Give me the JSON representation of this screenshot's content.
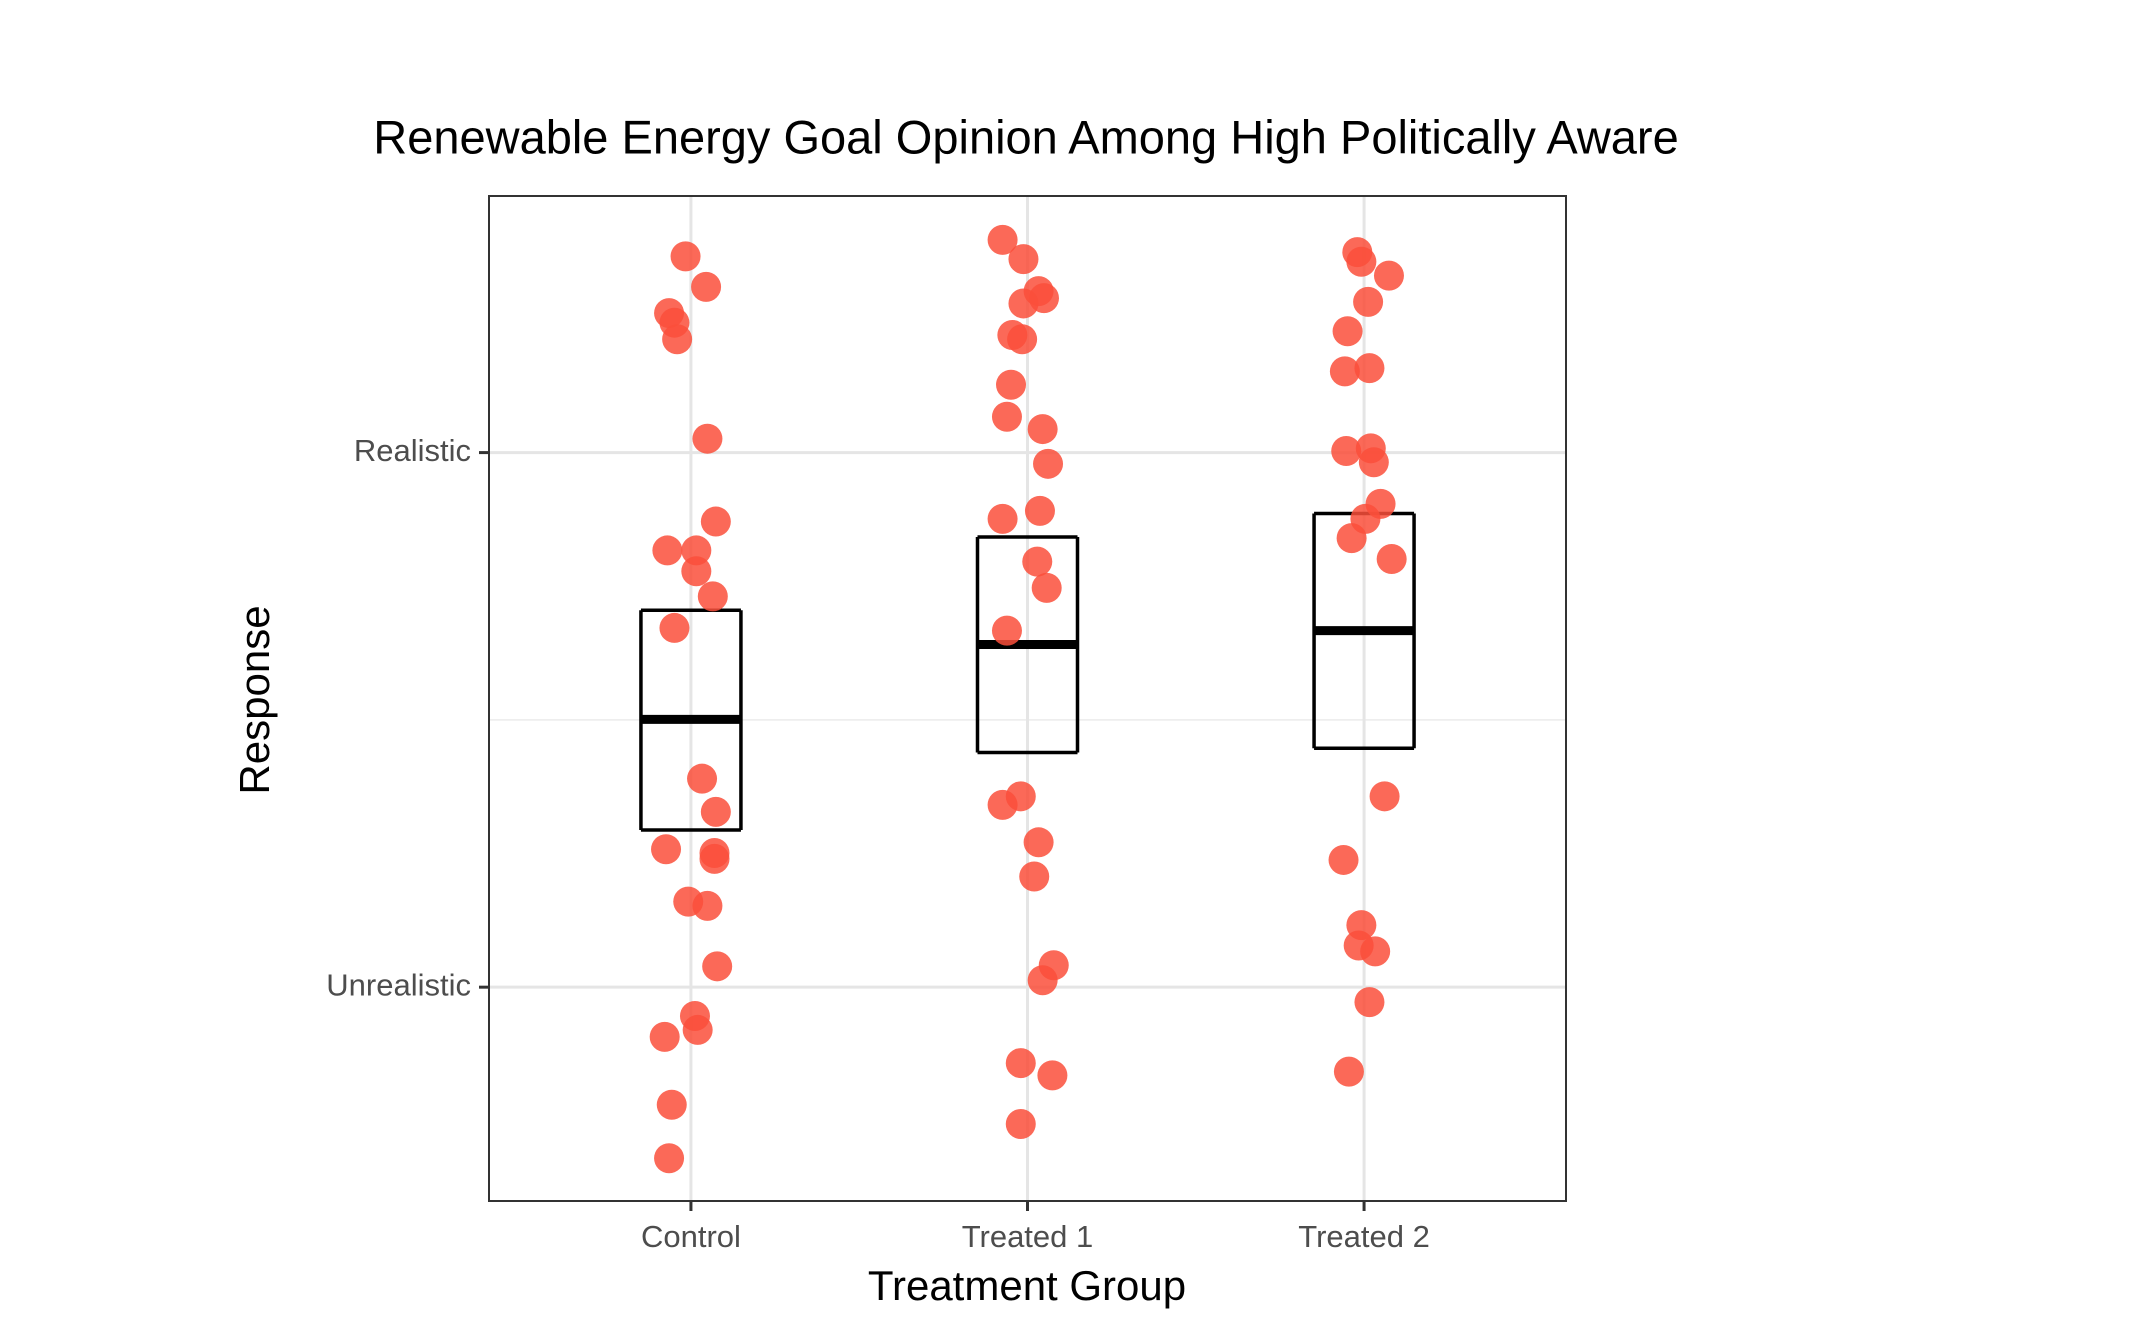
{
  "chart_data": {
    "type": "box_jitter",
    "title": "Renewable Energy Goal Opinion Among High Politically Aware",
    "x_label": "Treatment Group",
    "y_label": "Response",
    "xlim": [
      0.4,
      3.6
    ],
    "ylim": [
      -0.4,
      1.48
    ],
    "xticks": [
      {
        "value": 1,
        "label": "Control"
      },
      {
        "value": 2,
        "label": "Treated 1"
      },
      {
        "value": 3,
        "label": "Treated 2"
      }
    ],
    "yticks": [
      {
        "value": 0,
        "label": "Unrealistic"
      },
      {
        "value": 1,
        "label": "Realistic"
      }
    ],
    "y_minor_grid": [
      0.5
    ],
    "grid": true,
    "point_color": "#fa4f3b",
    "groups": [
      {
        "x": [
          0.984,
          1.045,
          0.935,
          0.951,
          0.959,
          1.049,
          1.074,
          0.93,
          1.016,
          1.016,
          1.065,
          0.951,
          1.033,
          1.074,
          0.926,
          1.07,
          1.07,
          0.992,
          1.049,
          1.078,
          1.012,
          1.02,
          0.922,
          0.943,
          0.935
        ],
        "y": [
          1.367,
          1.31,
          1.261,
          1.243,
          1.212,
          1.026,
          0.871,
          0.817,
          0.817,
          0.778,
          0.731,
          0.672,
          0.39,
          0.328,
          0.258,
          0.251,
          0.24,
          0.16,
          0.152,
          0.039,
          -0.054,
          -0.08,
          -0.093,
          -0.22,
          -0.32
        ],
        "box_low": 0.294,
        "box_median": 0.501,
        "box_high": 0.705
      },
      {
        "x": [
          1.926,
          1.988,
          2.033,
          2.049,
          1.988,
          1.955,
          1.984,
          1.951,
          1.939,
          2.045,
          2.061,
          2.037,
          1.926,
          2.029,
          2.057,
          1.939,
          1.98,
          1.926,
          2.033,
          2.02,
          2.078,
          2.045,
          1.98,
          2.074,
          1.98
        ],
        "y": [
          1.398,
          1.362,
          1.302,
          1.289,
          1.279,
          1.22,
          1.212,
          1.127,
          1.067,
          1.044,
          0.979,
          0.891,
          0.876,
          0.796,
          0.747,
          0.667,
          0.357,
          0.341,
          0.271,
          0.207,
          0.041,
          0.013,
          -0.142,
          -0.165,
          -0.256
        ],
        "box_low": 0.439,
        "box_median": 0.641,
        "box_high": 0.842
      },
      {
        "x": [
          2.98,
          2.992,
          3.074,
          3.012,
          2.951,
          2.943,
          3.016,
          2.947,
          3.02,
          3.029,
          3.049,
          3.004,
          2.963,
          3.082,
          3.061,
          2.939,
          2.992,
          2.984,
          3.033,
          3.016,
          2.955
        ],
        "y": [
          1.375,
          1.357,
          1.331,
          1.282,
          1.227,
          1.152,
          1.158,
          1.003,
          1.008,
          0.982,
          0.904,
          0.876,
          0.84,
          0.801,
          0.357,
          0.238,
          0.116,
          0.078,
          0.067,
          -0.028,
          -0.158
        ],
        "box_low": 0.447,
        "box_median": 0.667,
        "box_high": 0.886
      }
    ]
  }
}
